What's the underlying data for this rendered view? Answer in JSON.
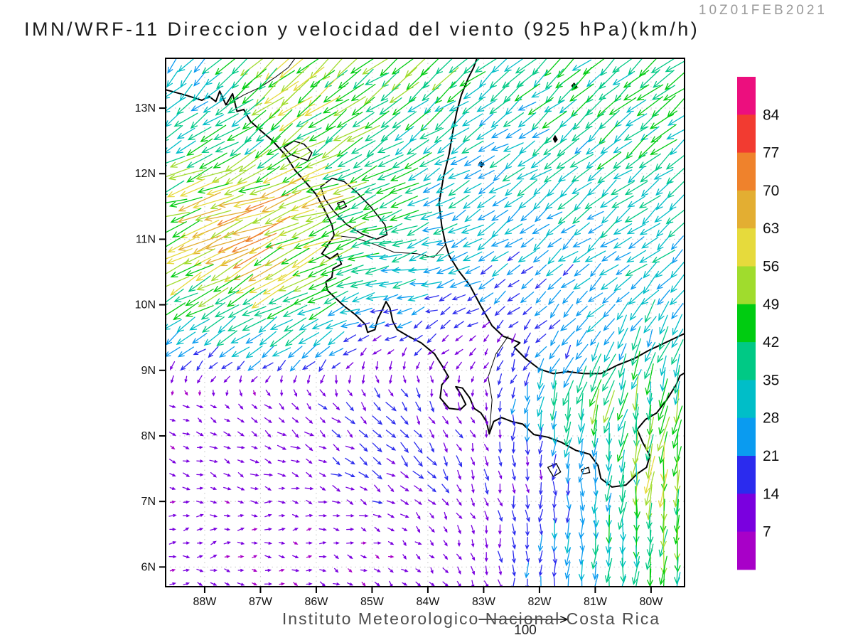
{
  "header": {
    "run_label": "10Z01FEB2021",
    "title": "IMN/WRF-11 Direccion y velocidad del viento (925 hPa)(km/h)"
  },
  "footer": {
    "institute": "Instituto Meteorologico Nacional Costa Rica",
    "ref_label": "100"
  },
  "chart_data": {
    "type": "vector_field_map",
    "title": "IMN/WRF-11 Direccion y velocidad del viento (925 hPa)(km/h)",
    "valid_time": "10Z01FEB2021",
    "units": "km/h",
    "level": "925 hPa",
    "lon_range": [
      -88.7,
      -79.4
    ],
    "lat_range": [
      5.7,
      13.76
    ],
    "x_ticks": [
      {
        "label": "88W",
        "value": -88
      },
      {
        "label": "87W",
        "value": -87
      },
      {
        "label": "86W",
        "value": -86
      },
      {
        "label": "85W",
        "value": -85
      },
      {
        "label": "84W",
        "value": -84
      },
      {
        "label": "83W",
        "value": -83
      },
      {
        "label": "82W",
        "value": -82
      },
      {
        "label": "81W",
        "value": -81
      },
      {
        "label": "80W",
        "value": -80
      }
    ],
    "y_ticks": [
      {
        "label": "6N",
        "value": 6
      },
      {
        "label": "7N",
        "value": 7
      },
      {
        "label": "8N",
        "value": 8
      },
      {
        "label": "9N",
        "value": 9
      },
      {
        "label": "10N",
        "value": 10
      },
      {
        "label": "11N",
        "value": 11
      },
      {
        "label": "12N",
        "value": 12
      },
      {
        "label": "13N",
        "value": 13
      }
    ],
    "colorbar": {
      "bins": [
        7,
        14,
        21,
        28,
        35,
        42,
        49,
        56,
        63,
        70,
        77,
        84
      ],
      "colors": [
        "#A800C8",
        "#7A00DF",
        "#2B2BEE",
        "#0A9BF0",
        "#00BEC8",
        "#00C985",
        "#00CC11",
        "#A0DC2D",
        "#E6DA3C",
        "#E3AE32",
        "#EF822C",
        "#F23B31",
        "#EC0F7E"
      ]
    },
    "reference_arrow": {
      "value": 100,
      "label": "100"
    },
    "wind_grid": {
      "lats": [
        5.5,
        6.5,
        7.5,
        8.5,
        9.5,
        10.5,
        11.5,
        12.5,
        13.5
      ],
      "lons": [
        -89,
        -88,
        -87,
        -86,
        -85,
        -84,
        -83,
        -82,
        -81,
        -80,
        -79
      ],
      "u": [
        [
          8,
          8,
          8,
          7,
          6,
          5,
          2,
          0,
          -2,
          -3,
          -3
        ],
        [
          8,
          8,
          8,
          8,
          8,
          6,
          3,
          0,
          -2,
          -4,
          -3
        ],
        [
          9,
          9,
          10,
          11,
          13,
          11,
          5,
          -1,
          -3,
          -5,
          -4
        ],
        [
          6,
          7,
          8,
          9,
          11,
          8,
          1,
          -6,
          -12,
          -10,
          -8
        ],
        [
          -24,
          -26,
          -30,
          -28,
          -15,
          -13,
          -9,
          -12,
          -16,
          -13,
          -11
        ],
        [
          -42,
          -46,
          -50,
          -46,
          -34,
          -30,
          -22,
          -18,
          -21,
          -23,
          -23
        ],
        [
          -52,
          -57,
          -62,
          -55,
          -40,
          -30,
          -25,
          -25,
          -25,
          -26,
          -26
        ],
        [
          -28,
          -30,
          -34,
          -38,
          -36,
          -32,
          -26,
          -27,
          -28,
          -30,
          -30
        ],
        [
          -14,
          -22,
          -38,
          -42,
          -36,
          -34,
          -30,
          -29,
          -30,
          -31,
          -31
        ]
      ],
      "v": [
        [
          -2,
          -2,
          -3,
          -4,
          -5,
          -6,
          -12,
          -18,
          -28,
          -42,
          -40
        ],
        [
          1,
          2,
          1,
          0,
          -2,
          -6,
          -12,
          -20,
          -33,
          -46,
          -42
        ],
        [
          -2,
          -3,
          -4,
          -5,
          -9,
          -13,
          -13,
          -14,
          -25,
          -48,
          -44
        ],
        [
          -4,
          -5,
          -6,
          -8,
          -12,
          -13,
          -9,
          -30,
          -46,
          -42,
          -40
        ],
        [
          -16,
          -17,
          -18,
          -16,
          -8,
          -8,
          -9,
          -14,
          -22,
          -30,
          -32
        ],
        [
          -24,
          -26,
          -28,
          -24,
          -6,
          -8,
          -13,
          -14,
          -17,
          -19,
          -19
        ],
        [
          -17,
          -19,
          -21,
          -19,
          -14,
          -14,
          -17,
          -19,
          -20,
          -21,
          -21
        ],
        [
          -18,
          -20,
          -23,
          -24,
          -24,
          -22,
          -14,
          -20,
          -23,
          -24,
          -24
        ],
        [
          -18,
          -24,
          -34,
          -34,
          -28,
          -28,
          -24,
          -25,
          -26,
          -26,
          -26
        ]
      ]
    },
    "coastlines": [
      [
        [
          -88.7,
          13.28
        ],
        [
          -88.35,
          13.2
        ],
        [
          -88.05,
          13.12
        ],
        [
          -87.92,
          13.18
        ],
        [
          -87.8,
          13.1
        ],
        [
          -87.73,
          13.26
        ],
        [
          -87.62,
          13.05
        ],
        [
          -87.5,
          13.22
        ],
        [
          -87.42,
          12.95
        ],
        [
          -87.3,
          12.98
        ],
        [
          -87.18,
          12.8
        ],
        [
          -87.0,
          12.66
        ],
        [
          -86.78,
          12.5
        ],
        [
          -86.55,
          12.28
        ],
        [
          -86.38,
          12.05
        ],
        [
          -86.2,
          11.88
        ],
        [
          -86.0,
          11.68
        ],
        [
          -85.86,
          11.46
        ],
        [
          -85.72,
          11.22
        ],
        [
          -85.68,
          11.06
        ],
        [
          -85.8,
          10.9
        ],
        [
          -85.9,
          10.78
        ],
        [
          -85.75,
          10.7
        ],
        [
          -85.62,
          10.78
        ],
        [
          -85.55,
          10.62
        ],
        [
          -85.7,
          10.55
        ],
        [
          -85.72,
          10.42
        ],
        [
          -85.83,
          10.35
        ],
        [
          -85.8,
          10.22
        ],
        [
          -85.68,
          10.12
        ],
        [
          -85.5,
          9.98
        ],
        [
          -85.3,
          9.85
        ],
        [
          -85.12,
          9.7
        ],
        [
          -85.08,
          9.58
        ],
        [
          -84.95,
          9.62
        ],
        [
          -84.9,
          9.78
        ],
        [
          -84.82,
          9.92
        ],
        [
          -84.75,
          10.05
        ],
        [
          -84.68,
          9.95
        ],
        [
          -84.63,
          9.75
        ],
        [
          -84.55,
          9.62
        ],
        [
          -84.35,
          9.52
        ],
        [
          -84.12,
          9.42
        ],
        [
          -83.88,
          9.25
        ],
        [
          -83.73,
          9.05
        ],
        [
          -83.63,
          8.9
        ],
        [
          -83.75,
          8.78
        ],
        [
          -83.78,
          8.58
        ],
        [
          -83.62,
          8.42
        ],
        [
          -83.42,
          8.4
        ],
        [
          -83.32,
          8.48
        ],
        [
          -83.4,
          8.62
        ],
        [
          -83.5,
          8.75
        ],
        [
          -83.38,
          8.73
        ],
        [
          -83.25,
          8.58
        ],
        [
          -83.17,
          8.42
        ],
        [
          -83.05,
          8.35
        ],
        [
          -82.95,
          8.22
        ],
        [
          -82.9,
          8.03
        ],
        [
          -82.82,
          8.22
        ],
        [
          -82.68,
          8.28
        ],
        [
          -82.5,
          8.22
        ],
        [
          -82.3,
          8.18
        ],
        [
          -82.1,
          8.02
        ],
        [
          -81.85,
          7.98
        ],
        [
          -81.6,
          7.9
        ],
        [
          -81.35,
          7.78
        ],
        [
          -81.1,
          7.72
        ],
        [
          -80.95,
          7.55
        ],
        [
          -80.9,
          7.35
        ],
        [
          -80.7,
          7.22
        ],
        [
          -80.45,
          7.25
        ],
        [
          -80.25,
          7.42
        ],
        [
          -80.08,
          7.52
        ],
        [
          -80.02,
          7.7
        ],
        [
          -80.15,
          7.9
        ],
        [
          -80.25,
          8.1
        ],
        [
          -80.1,
          8.25
        ],
        [
          -79.9,
          8.35
        ],
        [
          -79.72,
          8.55
        ],
        [
          -79.55,
          8.78
        ],
        [
          -79.48,
          8.92
        ],
        [
          -79.4,
          8.96
        ]
      ],
      [
        [
          -79.4,
          9.56
        ],
        [
          -79.6,
          9.48
        ],
        [
          -79.85,
          9.38
        ],
        [
          -80.05,
          9.3
        ],
        [
          -80.3,
          9.18
        ],
        [
          -80.6,
          9.08
        ],
        [
          -80.9,
          8.95
        ],
        [
          -81.2,
          8.95
        ],
        [
          -81.5,
          8.98
        ],
        [
          -81.75,
          8.95
        ],
        [
          -82.0,
          9.02
        ],
        [
          -82.25,
          9.18
        ],
        [
          -82.45,
          9.35
        ],
        [
          -82.35,
          9.42
        ],
        [
          -82.52,
          9.48
        ],
        [
          -82.65,
          9.52
        ],
        [
          -82.85,
          9.68
        ],
        [
          -83.05,
          9.98
        ],
        [
          -83.25,
          10.3
        ],
        [
          -83.45,
          10.52
        ],
        [
          -83.62,
          10.75
        ],
        [
          -83.68,
          10.92
        ],
        [
          -83.75,
          11.2
        ],
        [
          -83.8,
          11.55
        ],
        [
          -83.72,
          11.95
        ],
        [
          -83.62,
          12.3
        ],
        [
          -83.55,
          12.65
        ],
        [
          -83.48,
          12.95
        ],
        [
          -83.4,
          13.2
        ],
        [
          -83.28,
          13.45
        ],
        [
          -83.18,
          13.62
        ],
        [
          -83.12,
          13.76
        ]
      ]
    ],
    "borders": [
      [
        [
          -87.6,
          13.05
        ],
        [
          -87.3,
          13.2
        ],
        [
          -87.0,
          13.32
        ],
        [
          -86.72,
          13.48
        ],
        [
          -86.5,
          13.62
        ],
        [
          -86.38,
          13.76
        ]
      ],
      [
        [
          -85.68,
          11.06
        ],
        [
          -85.3,
          11.02
        ],
        [
          -84.95,
          10.92
        ],
        [
          -84.6,
          10.8
        ],
        [
          -84.2,
          10.78
        ],
        [
          -83.9,
          10.72
        ],
        [
          -83.68,
          10.92
        ]
      ],
      [
        [
          -82.56,
          9.52
        ],
        [
          -82.78,
          9.25
        ],
        [
          -82.92,
          8.9
        ],
        [
          -82.85,
          8.55
        ],
        [
          -82.9,
          8.03
        ]
      ]
    ],
    "lakes": [
      [
        [
          -86.58,
          12.4
        ],
        [
          -86.4,
          12.5
        ],
        [
          -86.22,
          12.45
        ],
        [
          -86.08,
          12.32
        ],
        [
          -86.15,
          12.2
        ],
        [
          -86.33,
          12.25
        ],
        [
          -86.47,
          12.3
        ],
        [
          -86.58,
          12.4
        ]
      ],
      [
        [
          -85.92,
          11.8
        ],
        [
          -85.72,
          11.93
        ],
        [
          -85.5,
          11.88
        ],
        [
          -85.28,
          11.72
        ],
        [
          -85.03,
          11.5
        ],
        [
          -84.77,
          11.22
        ],
        [
          -84.73,
          11.07
        ],
        [
          -84.92,
          11.0
        ],
        [
          -85.18,
          11.08
        ],
        [
          -85.45,
          11.22
        ],
        [
          -85.68,
          11.42
        ],
        [
          -85.85,
          11.62
        ],
        [
          -85.92,
          11.8
        ]
      ],
      [
        [
          -85.62,
          11.55
        ],
        [
          -85.51,
          11.58
        ],
        [
          -85.46,
          11.5
        ],
        [
          -85.57,
          11.46
        ],
        [
          -85.62,
          11.55
        ]
      ]
    ],
    "islands": [
      {
        "fill": true,
        "pts": [
          [
            -81.72,
            12.58
          ],
          [
            -81.68,
            12.52
          ],
          [
            -81.72,
            12.48
          ],
          [
            -81.75,
            12.53
          ],
          [
            -81.72,
            12.58
          ]
        ]
      },
      {
        "fill": true,
        "pts": [
          [
            -81.38,
            13.38
          ],
          [
            -81.33,
            13.33
          ],
          [
            -81.38,
            13.29
          ],
          [
            -81.42,
            13.34
          ],
          [
            -81.38,
            13.38
          ]
        ]
      },
      {
        "fill": true,
        "pts": [
          [
            -83.06,
            12.18
          ],
          [
            -83.0,
            12.15
          ],
          [
            -83.04,
            12.1
          ],
          [
            -83.09,
            12.14
          ],
          [
            -83.06,
            12.18
          ]
        ]
      },
      {
        "fill": false,
        "pts": [
          [
            -81.85,
            7.52
          ],
          [
            -81.7,
            7.58
          ],
          [
            -81.62,
            7.45
          ],
          [
            -81.75,
            7.38
          ],
          [
            -81.85,
            7.52
          ]
        ]
      },
      {
        "fill": false,
        "pts": [
          [
            -81.25,
            7.48
          ],
          [
            -81.12,
            7.52
          ],
          [
            -81.1,
            7.44
          ],
          [
            -81.22,
            7.42
          ],
          [
            -81.25,
            7.48
          ]
        ]
      },
      {
        "fill": false,
        "pts": [
          [
            -79.12,
            8.45
          ],
          [
            -79.0,
            8.5
          ],
          [
            -78.95,
            8.35
          ],
          [
            -79.08,
            8.3
          ],
          [
            -79.12,
            8.45
          ]
        ]
      }
    ]
  }
}
